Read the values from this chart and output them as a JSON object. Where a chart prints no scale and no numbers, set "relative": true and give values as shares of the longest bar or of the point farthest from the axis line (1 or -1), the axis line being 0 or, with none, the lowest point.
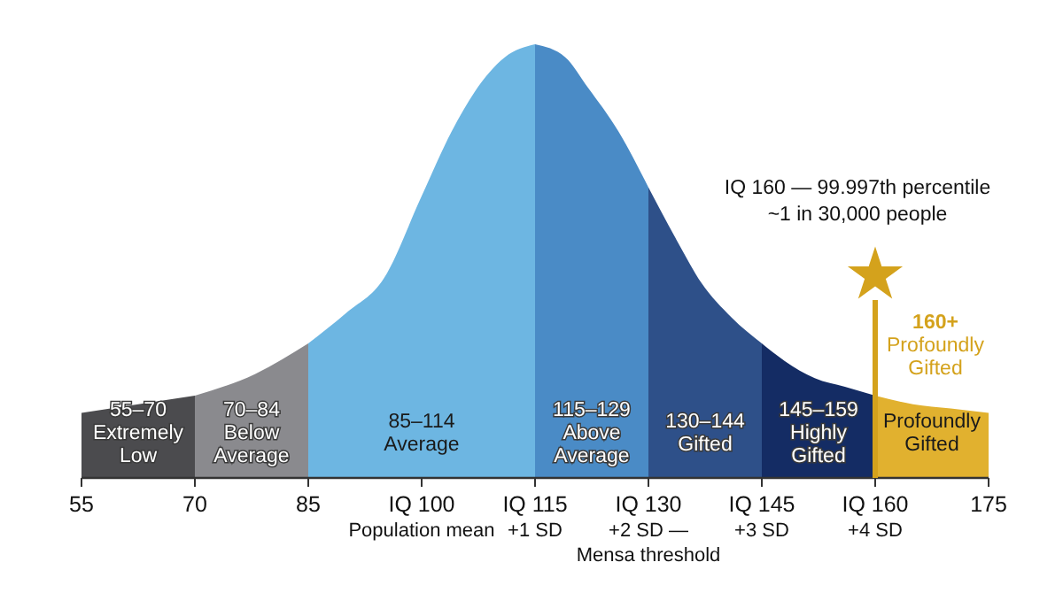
{
  "chart_data": {
    "type": "area",
    "relative": true,
    "xlim": [
      55,
      175
    ],
    "xticks": [
      55,
      70,
      85,
      {
        "value": 100,
        "label": "IQ 100\nPopulation mean"
      },
      {
        "value": 115,
        "label": "IQ 115\n+1 SD"
      },
      {
        "value": 130,
        "label": "IQ 130\n+2 SD —\nMensa threshold"
      },
      {
        "value": 145,
        "label": "IQ 145\n+3 SD"
      },
      {
        "value": 160,
        "label": "IQ 160\n+4 SD"
      },
      175
    ],
    "series": [
      {
        "color": "#4b4b4e",
        "x": [
          55,
          70
        ],
        "values": [
          0.15,
          0.19
        ]
      },
      {
        "color": "#8a8a8e",
        "x": [
          70,
          78,
          85
        ],
        "values": [
          0.19,
          0.24,
          0.31
        ]
      },
      {
        "color": "#6db6e2",
        "x": [
          85,
          90,
          95,
          100,
          104,
          107,
          111,
          115
        ],
        "values": [
          0.31,
          0.38,
          0.46,
          0.65,
          0.8,
          0.89,
          0.97,
          1
        ]
      },
      {
        "color": "#4a8bc6",
        "x": [
          115,
          119,
          122,
          126,
          130
        ],
        "values": [
          1,
          0.97,
          0.9,
          0.8,
          0.67
        ]
      },
      {
        "color": "#2e5089",
        "x": [
          130,
          134,
          137,
          141,
          145
        ],
        "values": [
          0.67,
          0.54,
          0.45,
          0.37,
          0.31
        ]
      },
      {
        "color": "#142c64",
        "x": [
          145,
          148,
          152,
          156,
          160
        ],
        "values": [
          0.31,
          0.27,
          0.23,
          0.21,
          0.19
        ]
      },
      {
        "color": "#e1b12f",
        "x": [
          160,
          165,
          170,
          175
        ],
        "values": [
          0.19,
          0.17,
          0.16,
          0.15
        ]
      }
    ],
    "ref_lines": [
      {
        "axis": "x",
        "value": 160,
        "label": "160+\nProfoundly\nGifted",
        "color": "#d4a21c"
      }
    ],
    "annotations": [
      "55–70\nExtremely\nLow",
      "70–84\nBelow\nAverage",
      "85–114\nAverage",
      "115–129\nAbove\nAverage",
      "130–144\nGifted",
      "145–159\nHighly\nGifted",
      "Profoundly\nGifted",
      "IQ 160 — 99.997th percentile\n~1 in 30,000 people"
    ]
  }
}
